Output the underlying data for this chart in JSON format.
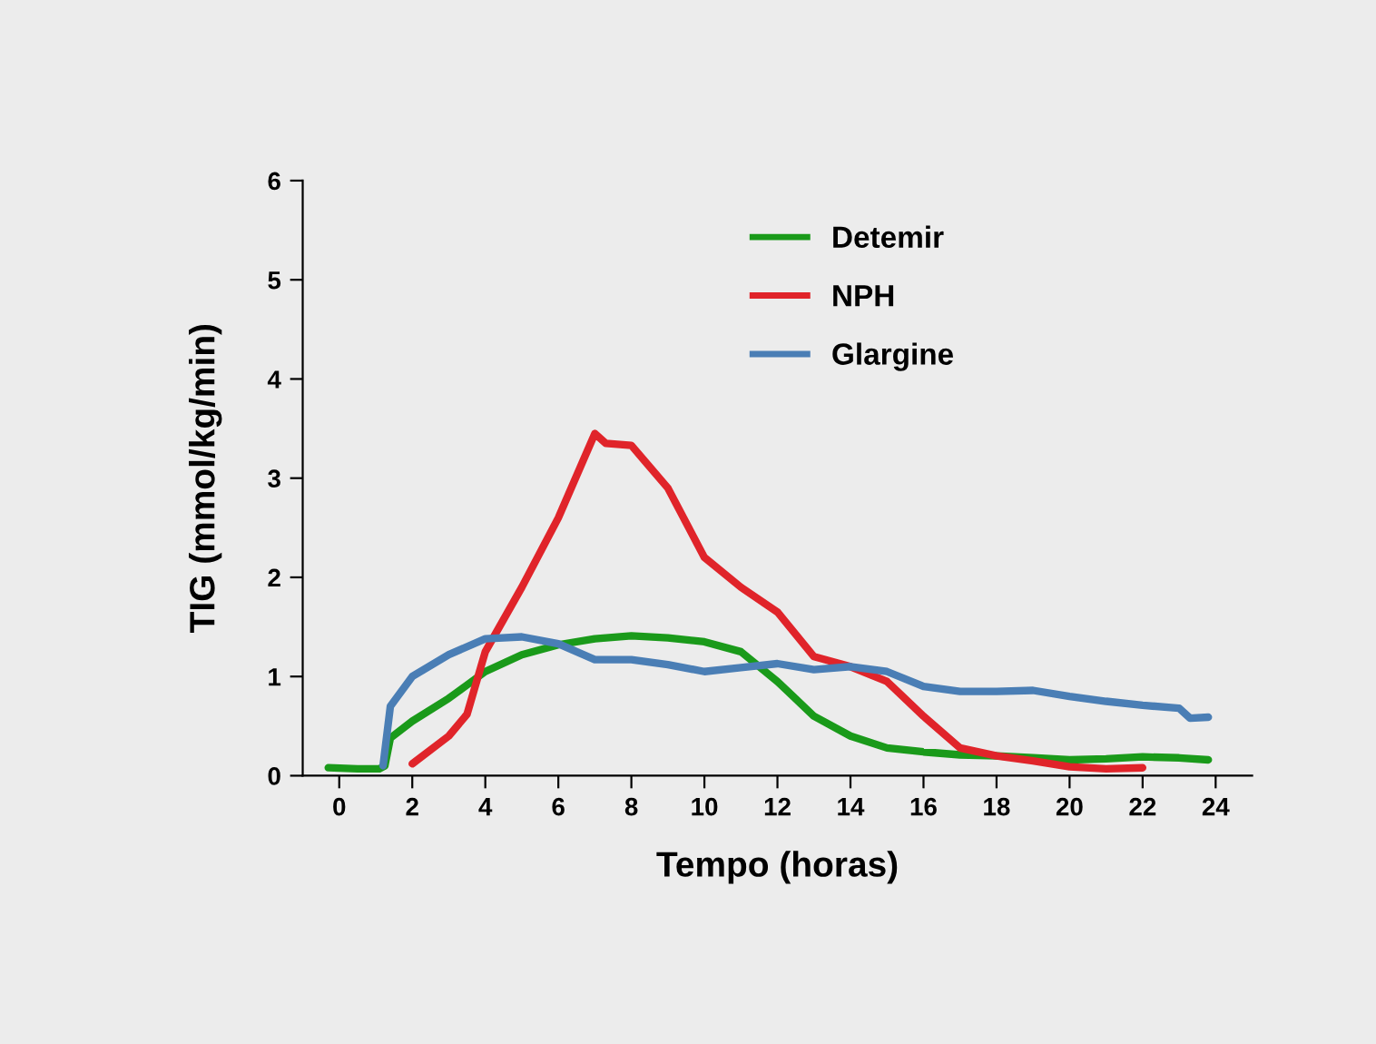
{
  "chart_data": {
    "type": "line",
    "xlabel": "Tempo (horas)",
    "ylabel": "TIG (mmol/kg/min)",
    "xlim": [
      -1,
      25
    ],
    "xticks": [
      0,
      2,
      4,
      6,
      8,
      10,
      12,
      14,
      16,
      18,
      20,
      22,
      24
    ],
    "ylim": [
      0,
      6
    ],
    "yticks": [
      0,
      1,
      2,
      3,
      4,
      5,
      6
    ],
    "grid": false,
    "legend": "top",
    "marker": "none",
    "line_style": "solid",
    "series": [
      {
        "name": "Detemir",
        "color": "#1a9a1a",
        "x": [
          -0.3,
          0.5,
          1.1,
          1.25,
          1.4,
          2,
          3,
          4,
          5,
          6,
          7,
          8,
          9,
          10,
          11,
          12,
          13,
          14,
          15,
          16,
          17,
          18,
          19,
          20,
          21,
          22,
          23,
          23.8
        ],
        "values": [
          0.08,
          0.07,
          0.07,
          0.1,
          0.38,
          0.55,
          0.78,
          1.05,
          1.22,
          1.32,
          1.38,
          1.41,
          1.39,
          1.35,
          1.25,
          0.95,
          0.6,
          0.4,
          0.28,
          0.24,
          0.21,
          0.2,
          0.18,
          0.16,
          0.17,
          0.19,
          0.18,
          0.16
        ]
      },
      {
        "name": "NPH",
        "color": "#e0242a",
        "x": [
          2,
          3,
          3.5,
          4,
          5,
          6,
          7,
          7.3,
          8,
          9,
          10,
          11,
          12,
          13,
          14,
          15,
          16,
          17,
          18,
          19,
          20,
          21,
          22
        ],
        "values": [
          0.12,
          0.4,
          0.62,
          1.25,
          1.9,
          2.6,
          3.45,
          3.35,
          3.33,
          2.9,
          2.2,
          1.9,
          1.65,
          1.2,
          1.1,
          0.95,
          0.6,
          0.28,
          0.2,
          0.15,
          0.09,
          0.07,
          0.08
        ]
      },
      {
        "name": "Glargine",
        "color": "#4a7eb5",
        "x": [
          1.2,
          1.4,
          2,
          3,
          4,
          5,
          6,
          7,
          8,
          9,
          10,
          11,
          12,
          13,
          14,
          15,
          16,
          17,
          18,
          19,
          20,
          21,
          22,
          23,
          23.3,
          23.8
        ],
        "values": [
          0.1,
          0.7,
          1.0,
          1.22,
          1.38,
          1.4,
          1.33,
          1.17,
          1.17,
          1.12,
          1.05,
          1.09,
          1.13,
          1.07,
          1.1,
          1.05,
          0.9,
          0.85,
          0.85,
          0.86,
          0.8,
          0.75,
          0.71,
          0.68,
          0.58,
          0.59
        ]
      }
    ]
  }
}
